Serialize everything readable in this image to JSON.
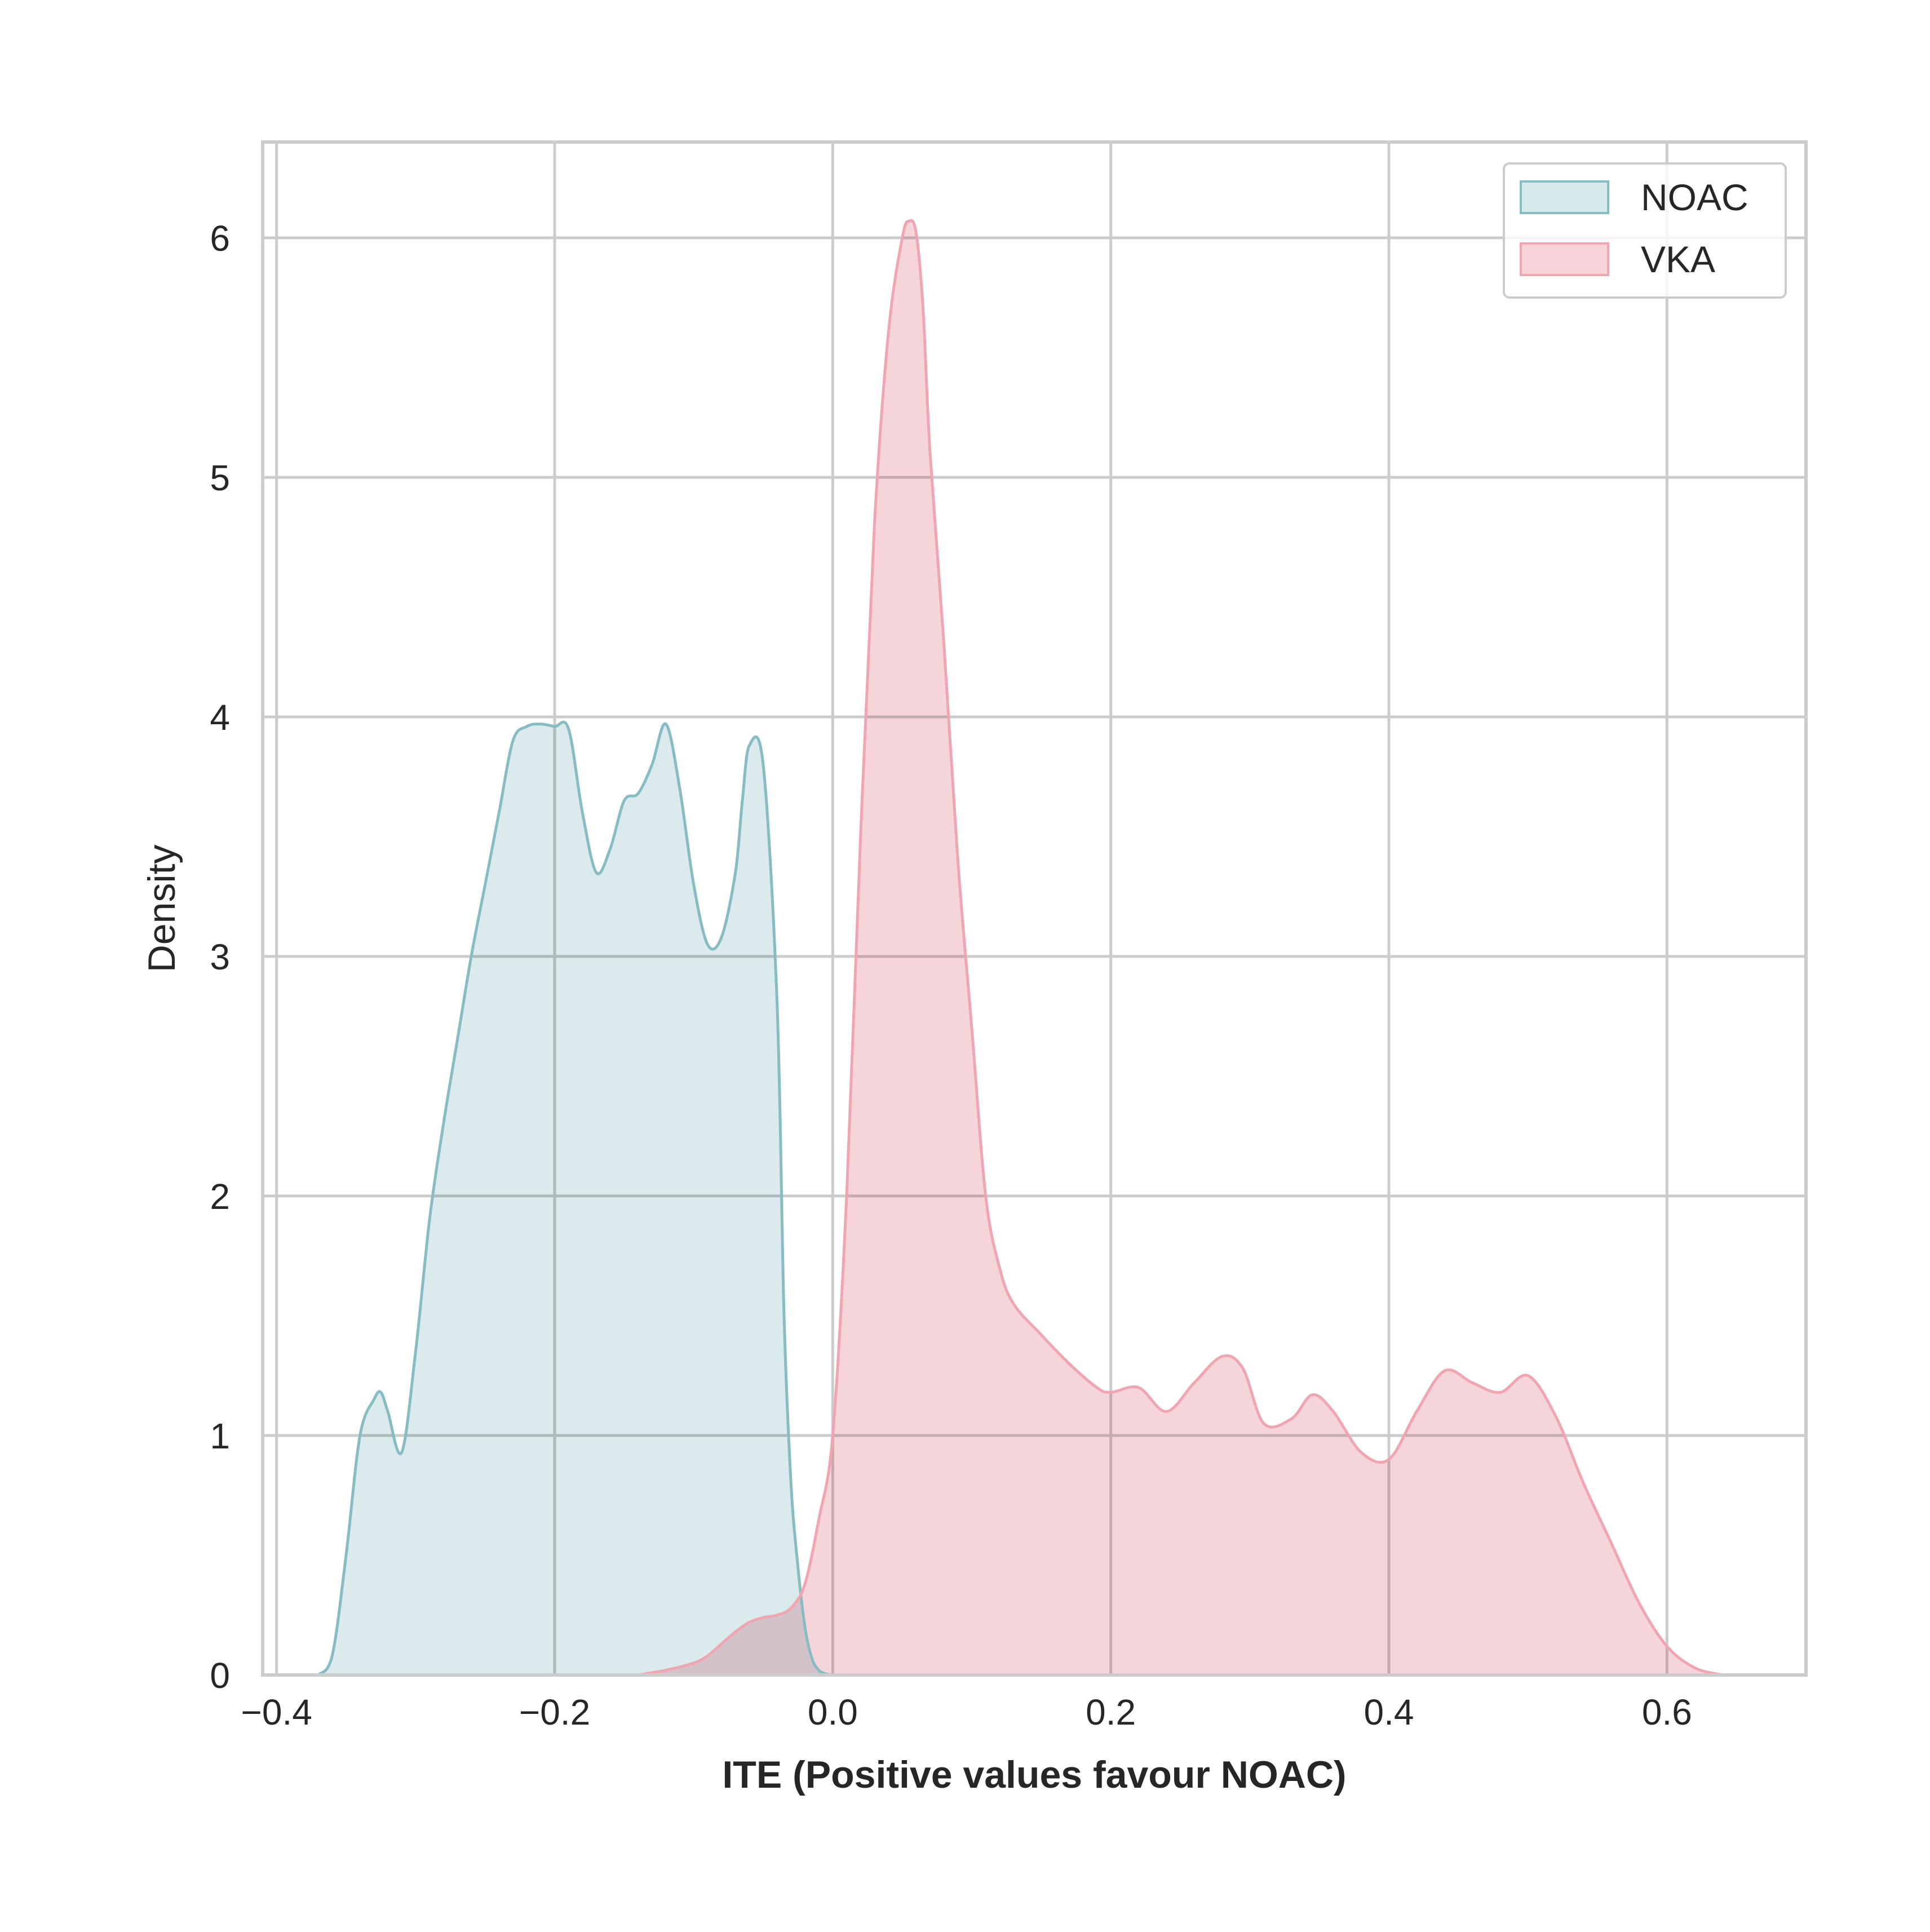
{
  "chart_data": {
    "type": "area",
    "title": "",
    "xlabel": "ITE (Positive values favour NOAC)",
    "ylabel": "Density",
    "xlim": [
      -0.41,
      0.7
    ],
    "ylim": [
      0,
      6.4
    ],
    "x_ticks": [
      -0.4,
      -0.2,
      0.0,
      0.2,
      0.4,
      0.6
    ],
    "x_tick_labels": [
      "−0.4",
      "−0.2",
      "0.0",
      "0.2",
      "0.4",
      "0.6"
    ],
    "y_ticks": [
      0,
      1,
      2,
      3,
      4,
      5,
      6
    ],
    "y_tick_labels": [
      "0",
      "1",
      "2",
      "3",
      "4",
      "5",
      "6"
    ],
    "grid": true,
    "legend_position": "top-right",
    "colors": {
      "NOAC_line": "#87bcc3",
      "NOAC_fill": "#d8e9ec",
      "VKA_line": "#f0a6b1",
      "VKA_fill": "#f6d3d8",
      "grid": "#cccccc",
      "frame": "#cccccc",
      "text": "#262626"
    },
    "series": [
      {
        "name": "NOAC",
        "x": [
          -0.37,
          -0.36,
          -0.35,
          -0.34,
          -0.33,
          -0.325,
          -0.32,
          -0.31,
          -0.3,
          -0.29,
          -0.28,
          -0.27,
          -0.26,
          -0.25,
          -0.24,
          -0.23,
          -0.22,
          -0.21,
          -0.2,
          -0.19,
          -0.18,
          -0.17,
          -0.16,
          -0.15,
          -0.14,
          -0.13,
          -0.12,
          -0.11,
          -0.1,
          -0.09,
          -0.08,
          -0.07,
          -0.065,
          -0.06,
          -0.05,
          -0.04,
          -0.035,
          -0.03,
          -0.025,
          -0.02,
          -0.015,
          -0.01,
          -0.005,
          0.0,
          0.01,
          0.02,
          0.03
        ],
        "y": [
          0.0,
          0.08,
          0.5,
          1.0,
          1.15,
          1.18,
          1.1,
          0.93,
          1.35,
          1.9,
          2.3,
          2.65,
          3.0,
          3.3,
          3.6,
          3.9,
          3.96,
          3.97,
          3.96,
          3.95,
          3.6,
          3.35,
          3.45,
          3.65,
          3.68,
          3.8,
          3.97,
          3.7,
          3.3,
          3.05,
          3.08,
          3.35,
          3.65,
          3.88,
          3.8,
          2.8,
          1.5,
          0.8,
          0.45,
          0.2,
          0.07,
          0.02,
          0.005,
          0.0,
          0.0,
          0.0,
          0.0
        ]
      },
      {
        "name": "VKA",
        "x": [
          -0.14,
          -0.12,
          -0.1,
          -0.09,
          -0.08,
          -0.07,
          -0.06,
          -0.05,
          -0.04,
          -0.03,
          -0.02,
          -0.01,
          0.0,
          0.01,
          0.02,
          0.03,
          0.04,
          0.05,
          0.055,
          0.06,
          0.065,
          0.07,
          0.08,
          0.09,
          0.1,
          0.11,
          0.12,
          0.13,
          0.15,
          0.17,
          0.19,
          0.2,
          0.22,
          0.24,
          0.26,
          0.28,
          0.295,
          0.31,
          0.33,
          0.345,
          0.36,
          0.38,
          0.4,
          0.42,
          0.44,
          0.46,
          0.48,
          0.5,
          0.52,
          0.54,
          0.56,
          0.58,
          0.6,
          0.62,
          0.64
        ],
        "y": [
          0.0,
          0.02,
          0.05,
          0.08,
          0.13,
          0.18,
          0.22,
          0.24,
          0.25,
          0.28,
          0.38,
          0.65,
          1.0,
          2.0,
          3.5,
          4.8,
          5.6,
          6.0,
          6.07,
          6.02,
          5.7,
          5.1,
          4.3,
          3.4,
          2.7,
          2.0,
          1.7,
          1.55,
          1.42,
          1.3,
          1.2,
          1.18,
          1.2,
          1.1,
          1.22,
          1.33,
          1.28,
          1.05,
          1.07,
          1.17,
          1.1,
          0.93,
          0.9,
          1.1,
          1.27,
          1.22,
          1.18,
          1.25,
          1.08,
          0.8,
          0.55,
          0.3,
          0.12,
          0.03,
          0.0
        ]
      }
    ]
  }
}
